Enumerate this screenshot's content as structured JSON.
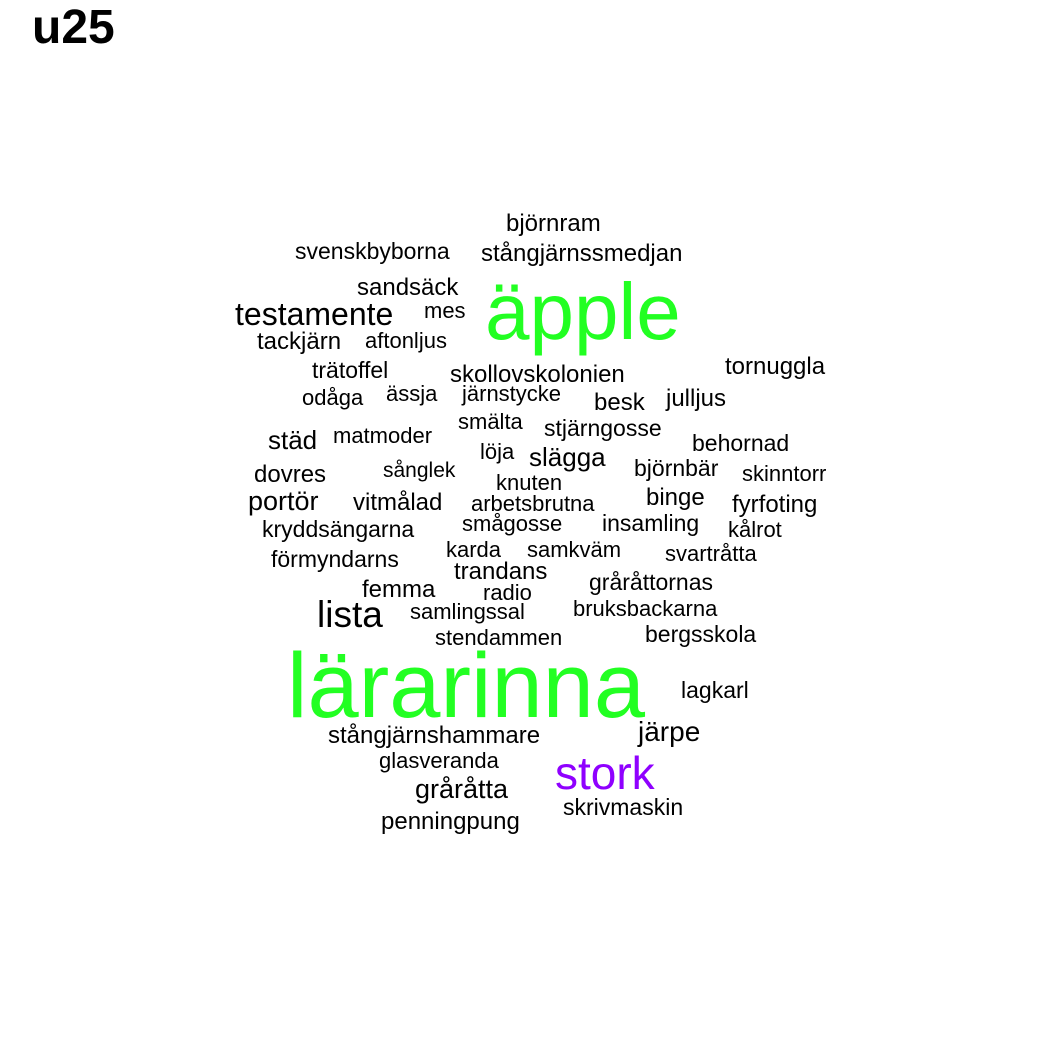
{
  "title": "u25",
  "colors": {
    "default": "#000000",
    "green": "#22ff22",
    "purple": "#8f00ff"
  },
  "words": [
    {
      "text": "björnram",
      "color": "default"
    },
    {
      "text": "svenskbyborna",
      "color": "default"
    },
    {
      "text": "stångjärnssmedjan",
      "color": "default"
    },
    {
      "text": "sandsäck",
      "color": "default"
    },
    {
      "text": "äpple",
      "color": "green"
    },
    {
      "text": "testamente",
      "color": "default"
    },
    {
      "text": "mes",
      "color": "default"
    },
    {
      "text": "tackjärn",
      "color": "default"
    },
    {
      "text": "aftonljus",
      "color": "default"
    },
    {
      "text": "trätoffel",
      "color": "default"
    },
    {
      "text": "skollovskolonien",
      "color": "default"
    },
    {
      "text": "tornuggla",
      "color": "default"
    },
    {
      "text": "odåga",
      "color": "default"
    },
    {
      "text": "ässja",
      "color": "default"
    },
    {
      "text": "järnstycke",
      "color": "default"
    },
    {
      "text": "besk",
      "color": "default"
    },
    {
      "text": "julljus",
      "color": "default"
    },
    {
      "text": "smälta",
      "color": "default"
    },
    {
      "text": "städ",
      "color": "default"
    },
    {
      "text": "matmoder",
      "color": "default"
    },
    {
      "text": "stjärngosse",
      "color": "default"
    },
    {
      "text": "behornad",
      "color": "default"
    },
    {
      "text": "löja",
      "color": "default"
    },
    {
      "text": "slägga",
      "color": "default"
    },
    {
      "text": "dovres",
      "color": "default"
    },
    {
      "text": "sånglek",
      "color": "default"
    },
    {
      "text": "björnbär",
      "color": "default"
    },
    {
      "text": "skinntorr",
      "color": "default"
    },
    {
      "text": "knuten",
      "color": "default"
    },
    {
      "text": "portör",
      "color": "default"
    },
    {
      "text": "vitmålad",
      "color": "default"
    },
    {
      "text": "arbetsbrutna",
      "color": "default"
    },
    {
      "text": "binge",
      "color": "default"
    },
    {
      "text": "fyrfoting",
      "color": "default"
    },
    {
      "text": "kryddsängarna",
      "color": "default"
    },
    {
      "text": "smågosse",
      "color": "default"
    },
    {
      "text": "insamling",
      "color": "default"
    },
    {
      "text": "kålrot",
      "color": "default"
    },
    {
      "text": "förmyndarns",
      "color": "default"
    },
    {
      "text": "karda",
      "color": "default"
    },
    {
      "text": "samkväm",
      "color": "default"
    },
    {
      "text": "svartråtta",
      "color": "default"
    },
    {
      "text": "trandans",
      "color": "default"
    },
    {
      "text": "femma",
      "color": "default"
    },
    {
      "text": "gråråttornas",
      "color": "default"
    },
    {
      "text": "radio",
      "color": "default"
    },
    {
      "text": "lista",
      "color": "default"
    },
    {
      "text": "samlingssal",
      "color": "default"
    },
    {
      "text": "bruksbackarna",
      "color": "default"
    },
    {
      "text": "stendammen",
      "color": "default"
    },
    {
      "text": "bergsskola",
      "color": "default"
    },
    {
      "text": "lärarinna",
      "color": "green"
    },
    {
      "text": "lagkarl",
      "color": "default"
    },
    {
      "text": "järpe",
      "color": "default"
    },
    {
      "text": "stångjärnshammare",
      "color": "default"
    },
    {
      "text": "glasveranda",
      "color": "default"
    },
    {
      "text": "stork",
      "color": "purple"
    },
    {
      "text": "gråråtta",
      "color": "default"
    },
    {
      "text": "skrivmaskin",
      "color": "default"
    },
    {
      "text": "penningpung",
      "color": "default"
    }
  ]
}
